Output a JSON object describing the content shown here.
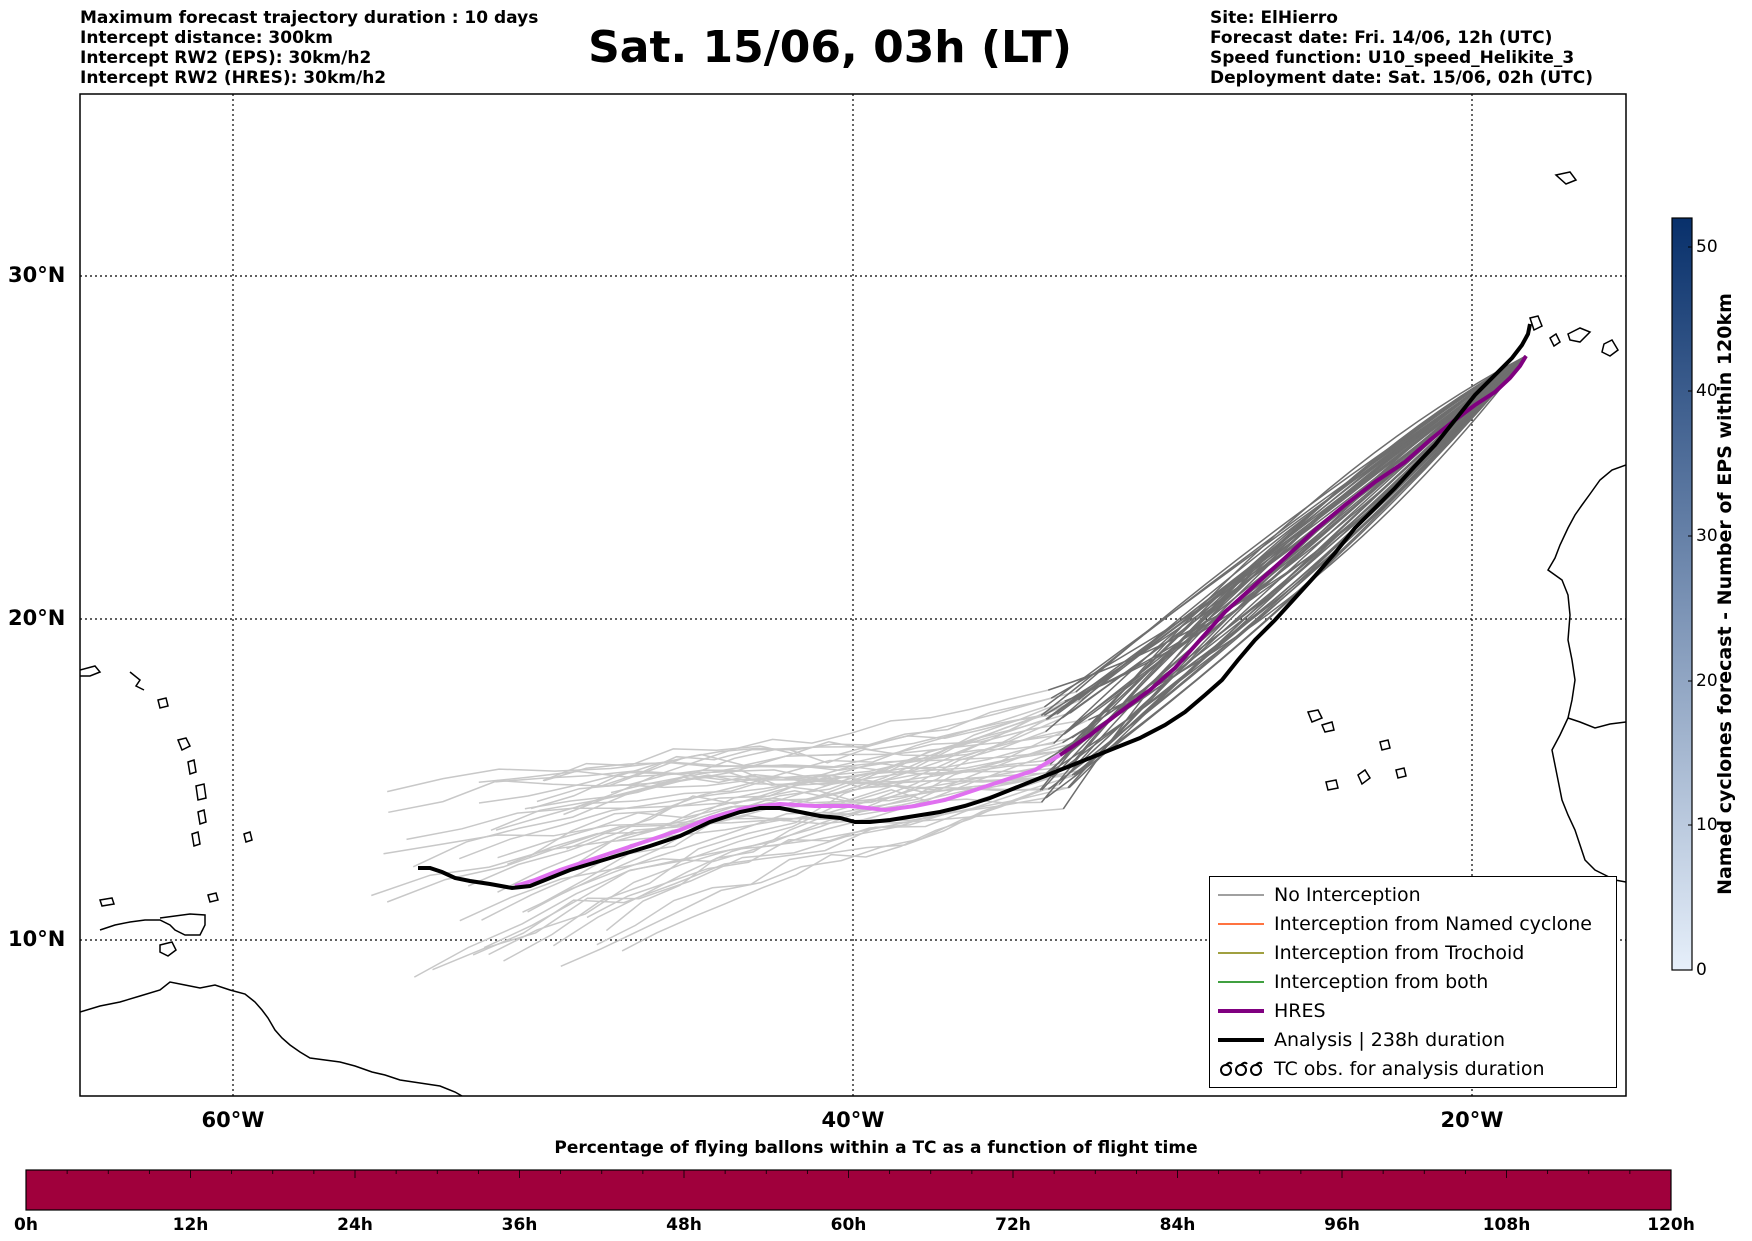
{
  "header_left": [
    "Maximum forecast trajectory duration : 10 days",
    "Intercept distance: 300km",
    "Intercept RW2 (EPS):  30km/h2",
    "Intercept RW2 (HRES): 30km/h2"
  ],
  "title": "Sat. 15/06, 03h (LT)",
  "header_right": [
    "Site: ElHierro",
    "Forecast date: Fri. 14/06, 12h (UTC)",
    "Speed function: U10_speed_Helikite_3",
    "Deployment date: Sat. 15/06, 02h (UTC)"
  ],
  "map": {
    "lat_labels": [
      "30°N",
      "20°N",
      "10°N"
    ],
    "lon_labels": [
      "60°W",
      "40°W",
      "20°W"
    ]
  },
  "legend": [
    {
      "label": "No Interception",
      "color": "#808080"
    },
    {
      "label": "Interception from Named cyclone",
      "color": "#ff4500"
    },
    {
      "label": "Interception from Trochoid",
      "color": "#808000"
    },
    {
      "label": "Interception from both",
      "color": "#008000"
    },
    {
      "label": "HRES",
      "color": "#800080"
    },
    {
      "label": "Analysis | 238h duration",
      "color": "#000000"
    },
    {
      "label": "TC obs. for analysis duration",
      "color": "#000000"
    }
  ],
  "colorbar": {
    "label": "Named cyclones forecast - Number of EPS within 120km",
    "ticks": [
      "0",
      "10",
      "20",
      "30",
      "40",
      "50"
    ],
    "max": 52,
    "color_low": "#e6effa",
    "color_high": "#08306b"
  },
  "time_bar": {
    "title": "Percentage of flying ballons within a TC as a function of flight time",
    "ticks": [
      "0h",
      "12h",
      "24h",
      "36h",
      "48h",
      "60h",
      "72h",
      "84h",
      "96h",
      "108h",
      "120h"
    ],
    "fill_color": "#a0003c"
  }
}
